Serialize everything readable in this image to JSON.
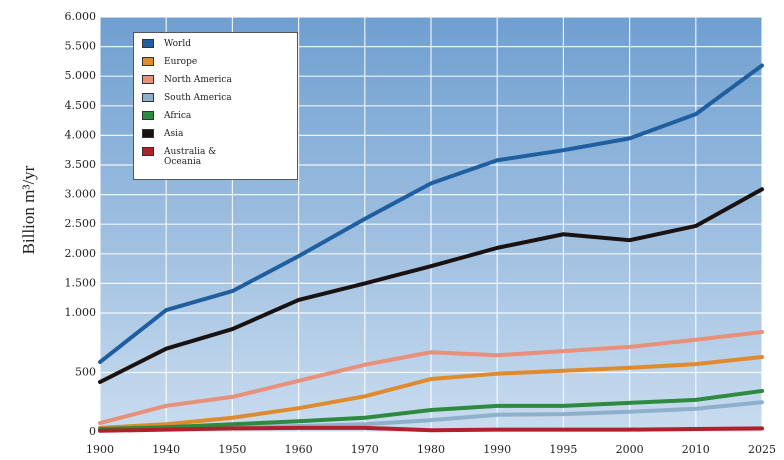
{
  "chart_data": {
    "type": "line",
    "y_label": "Billion m³/yr",
    "categories": [
      "1900",
      "1940",
      "1950",
      "1960",
      "1970",
      "1980",
      "1990",
      "1995",
      "2000",
      "2010",
      "2025"
    ],
    "ylim": [
      0,
      6000
    ],
    "y_scale_break": 1000,
    "yticks": [
      0,
      500,
      {
        "value": 1000,
        "label": "1.000"
      },
      {
        "value": 1500,
        "label": "1.500"
      },
      {
        "value": 2000,
        "label": "2.000"
      },
      {
        "value": 2500,
        "label": "2.500"
      },
      {
        "value": 3000,
        "label": "3.000"
      },
      {
        "value": 3500,
        "label": "3.500"
      },
      {
        "value": 4000,
        "label": "4.000"
      },
      {
        "value": 4500,
        "label": "4.500"
      },
      {
        "value": 5000,
        "label": "5.000"
      },
      {
        "value": 5500,
        "label": "5.500"
      },
      {
        "value": 6000,
        "label": "6.000"
      }
    ],
    "grid": true,
    "legend": "upper left",
    "series": [
      {
        "name": "World",
        "color": "#1f5fa0",
        "values": [
          588,
          1050,
          1370,
          1960,
          2590,
          3190,
          3580,
          3750,
          3950,
          4360,
          5180
        ]
      },
      {
        "name": "Europe",
        "color": "#e08a2e",
        "values": [
          35,
          65,
          120,
          200,
          300,
          445,
          490,
          515,
          540,
          570,
          630
        ]
      },
      {
        "name": "North America",
        "color": "#e8907a",
        "values": [
          75,
          220,
          295,
          430,
          565,
          670,
          645,
          680,
          715,
          775,
          840
        ]
      },
      {
        "name": "South America",
        "color": "#8fb0cc",
        "values": [
          15,
          35,
          40,
          50,
          65,
          100,
          145,
          150,
          170,
          195,
          250
        ]
      },
      {
        "name": "Africa",
        "color": "#2e8a3e",
        "values": [
          25,
          40,
          65,
          90,
          120,
          185,
          220,
          220,
          245,
          270,
          345
        ]
      },
      {
        "name": "Asia",
        "color": "#1a1210",
        "values": [
          420,
          700,
          865,
          1220,
          1500,
          1790,
          2100,
          2330,
          2230,
          2470,
          3090
        ]
      },
      {
        "name": "Australia & Oceania",
        "color": "#b0202a",
        "values": [
          10,
          20,
          30,
          35,
          35,
          15,
          20,
          20,
          20,
          25,
          30
        ]
      }
    ]
  }
}
